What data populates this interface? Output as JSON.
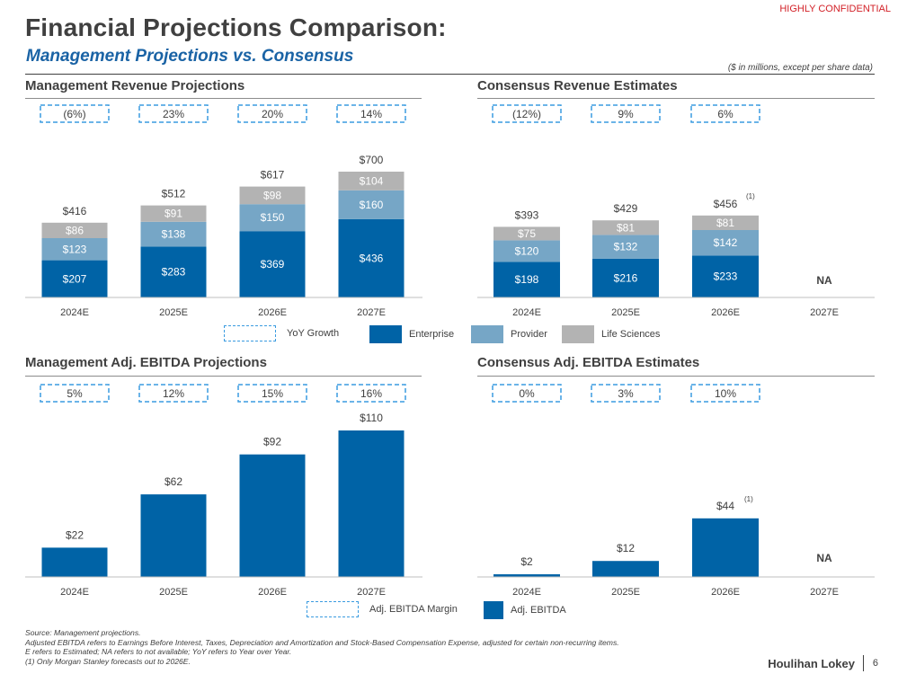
{
  "header": {
    "confidential": "HIGHLY CONFIDENTIAL",
    "title": "Financial Projections Comparison:",
    "subtitle": "Management Projections vs. Consensus",
    "units": "($ in millions, except per share data)"
  },
  "colors": {
    "enterprise": "#0063a6",
    "provider": "#76a6c6",
    "life_sciences": "#b3b3b3",
    "growth_box": "#3a9be0",
    "text": "#404040"
  },
  "legend_revenue": {
    "yoy": "YoY Growth",
    "enterprise": "Enterprise",
    "provider": "Provider",
    "life_sciences": "Life Sciences"
  },
  "legend_ebitda": {
    "margin": "Adj. EBITDA Margin",
    "ebitda": "Adj. EBITDA"
  },
  "chart_data": [
    {
      "id": "mgmt_revenue",
      "type": "bar",
      "stacked": true,
      "title": "Management Revenue Projections",
      "categories": [
        "2024E",
        "2025E",
        "2026E",
        "2027E"
      ],
      "series": [
        {
          "name": "Enterprise",
          "values": [
            207,
            283,
            369,
            436
          ],
          "labels": [
            "$207",
            "$283",
            "$369",
            "$436"
          ]
        },
        {
          "name": "Provider",
          "values": [
            123,
            138,
            150,
            160
          ],
          "labels": [
            "$123",
            "$138",
            "$150",
            "$160"
          ]
        },
        {
          "name": "Life Sciences",
          "values": [
            86,
            91,
            98,
            104
          ],
          "labels": [
            "$86",
            "$91",
            "$98",
            "$104"
          ]
        }
      ],
      "totals": [
        "$416",
        "$512",
        "$617",
        "$700"
      ],
      "growth": [
        "(6%)",
        "23%",
        "20%",
        "14%"
      ],
      "ylim": [
        0,
        700
      ]
    },
    {
      "id": "cons_revenue",
      "type": "bar",
      "stacked": true,
      "title": "Consensus Revenue Estimates",
      "categories": [
        "2024E",
        "2025E",
        "2026E",
        "2027E"
      ],
      "series": [
        {
          "name": "Enterprise",
          "values": [
            198,
            216,
            233,
            null
          ],
          "labels": [
            "$198",
            "$216",
            "$233",
            ""
          ]
        },
        {
          "name": "Provider",
          "values": [
            120,
            132,
            142,
            null
          ],
          "labels": [
            "$120",
            "$132",
            "$142",
            ""
          ]
        },
        {
          "name": "Life Sciences",
          "values": [
            75,
            81,
            81,
            null
          ],
          "labels": [
            "$75",
            "$81",
            "$81",
            ""
          ]
        }
      ],
      "totals": [
        "$393",
        "$429",
        "$456",
        ""
      ],
      "total_notes": [
        "",
        "",
        "(1)",
        ""
      ],
      "growth": [
        "(12%)",
        "9%",
        "6%"
      ],
      "na_label": "NA",
      "ylim": [
        0,
        700
      ]
    },
    {
      "id": "mgmt_ebitda",
      "type": "bar",
      "title": "Management Adj. EBITDA Projections",
      "categories": [
        "2024E",
        "2025E",
        "2026E",
        "2027E"
      ],
      "series": [
        {
          "name": "Adj. EBITDA",
          "values": [
            22,
            62,
            92,
            110
          ],
          "labels": [
            "$22",
            "$62",
            "$92",
            "$110"
          ]
        }
      ],
      "margins": [
        "5%",
        "12%",
        "15%",
        "16%"
      ],
      "ylim": [
        0,
        110
      ]
    },
    {
      "id": "cons_ebitda",
      "type": "bar",
      "title": "Consensus Adj. EBITDA Estimates",
      "categories": [
        "2024E",
        "2025E",
        "2026E",
        "2027E"
      ],
      "series": [
        {
          "name": "Adj. EBITDA",
          "values": [
            2,
            12,
            44,
            null
          ],
          "labels": [
            "$2",
            "$12",
            "$44",
            ""
          ]
        }
      ],
      "value_notes": [
        "",
        "",
        "(1)",
        ""
      ],
      "margins": [
        "0%",
        "3%",
        "10%"
      ],
      "na_label": "NA",
      "ylim": [
        0,
        110
      ]
    }
  ],
  "footnotes": [
    "Source: Management projections.",
    "Adjusted EBITDA refers to Earnings Before Interest, Taxes, Depreciation and Amortization and Stock-Based Compensation Expense, adjusted for certain non-recurring items.",
    "E refers to Estimated; NA refers to not available; YoY refers to Year over Year.",
    "(1) Only Morgan Stanley forecasts out to 2026E."
  ],
  "footer": {
    "logo": "Houlihan Lokey",
    "page": "6"
  }
}
